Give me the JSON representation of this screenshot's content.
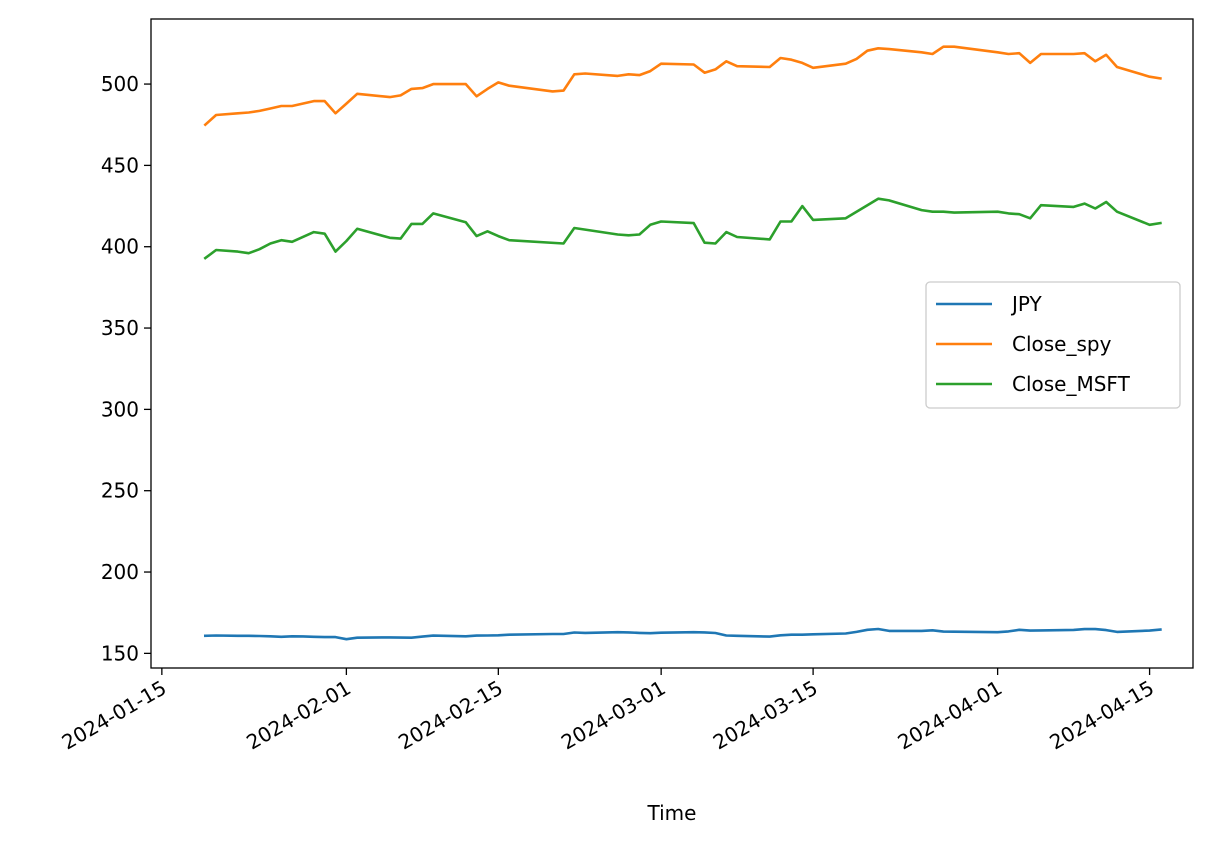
{
  "chart_data": {
    "type": "line",
    "title": "",
    "xlabel": "Time",
    "ylabel": "",
    "xlim": [
      "2024-01-14",
      "2024-04-19"
    ],
    "ylim": [
      141,
      540
    ],
    "grid": false,
    "legend_position": "center-right",
    "x_ticks": [
      "2024-01-15",
      "2024-02-01",
      "2024-02-15",
      "2024-03-01",
      "2024-03-15",
      "2024-04-01",
      "2024-04-15"
    ],
    "y_ticks": [
      150,
      200,
      250,
      300,
      350,
      400,
      450,
      500
    ],
    "series": [
      {
        "name": "JPY",
        "color": "#1f77b4",
        "points": [
          [
            "2024-01-19",
            160.8
          ],
          [
            "2024-01-20",
            161.0
          ],
          [
            "2024-01-22",
            160.8
          ],
          [
            "2024-01-23",
            160.8
          ],
          [
            "2024-01-24",
            160.7
          ],
          [
            "2024-01-25",
            160.5
          ],
          [
            "2024-01-26",
            160.2
          ],
          [
            "2024-01-27",
            160.5
          ],
          [
            "2024-01-28",
            160.4
          ],
          [
            "2024-01-29",
            160.2
          ],
          [
            "2024-01-30",
            160.0
          ],
          [
            "2024-01-31",
            160.0
          ],
          [
            "2024-02-01",
            158.7
          ],
          [
            "2024-02-02",
            159.6
          ],
          [
            "2024-02-05",
            159.8
          ],
          [
            "2024-02-06",
            159.7
          ],
          [
            "2024-02-07",
            159.6
          ],
          [
            "2024-02-08",
            160.3
          ],
          [
            "2024-02-09",
            160.9
          ],
          [
            "2024-02-12",
            160.5
          ],
          [
            "2024-02-13",
            160.9
          ],
          [
            "2024-02-14",
            161.0
          ],
          [
            "2024-02-15",
            161.1
          ],
          [
            "2024-02-16",
            161.5
          ],
          [
            "2024-02-20",
            161.9
          ],
          [
            "2024-02-21",
            161.9
          ],
          [
            "2024-02-22",
            162.8
          ],
          [
            "2024-02-23",
            162.6
          ],
          [
            "2024-02-26",
            163.0
          ],
          [
            "2024-02-27",
            162.9
          ],
          [
            "2024-02-28",
            162.6
          ],
          [
            "2024-02-29",
            162.4
          ],
          [
            "2024-03-01",
            162.7
          ],
          [
            "2024-03-04",
            163.0
          ],
          [
            "2024-03-05",
            162.9
          ],
          [
            "2024-03-06",
            162.5
          ],
          [
            "2024-03-07",
            161.0
          ],
          [
            "2024-03-08",
            160.8
          ],
          [
            "2024-03-11",
            160.3
          ],
          [
            "2024-03-12",
            161.1
          ],
          [
            "2024-03-13",
            161.5
          ],
          [
            "2024-03-14",
            161.5
          ],
          [
            "2024-03-15",
            161.7
          ],
          [
            "2024-03-18",
            162.2
          ],
          [
            "2024-03-19",
            163.2
          ],
          [
            "2024-03-20",
            164.5
          ],
          [
            "2024-03-21",
            165.0
          ],
          [
            "2024-03-22",
            163.8
          ],
          [
            "2024-03-25",
            163.8
          ],
          [
            "2024-03-26",
            164.2
          ],
          [
            "2024-03-27",
            163.4
          ],
          [
            "2024-03-28",
            163.3
          ],
          [
            "2024-04-01",
            163.0
          ],
          [
            "2024-04-02",
            163.5
          ],
          [
            "2024-04-03",
            164.5
          ],
          [
            "2024-04-04",
            164.0
          ],
          [
            "2024-04-05",
            164.1
          ],
          [
            "2024-04-08",
            164.4
          ],
          [
            "2024-04-09",
            164.9
          ],
          [
            "2024-04-10",
            164.9
          ],
          [
            "2024-04-11",
            164.3
          ],
          [
            "2024-04-12",
            163.2
          ],
          [
            "2024-04-15",
            164.0
          ],
          [
            "2024-04-16",
            164.6
          ]
        ]
      },
      {
        "name": "Close_spy",
        "color": "#ff7f0e",
        "points": [
          [
            "2024-01-19",
            475.0
          ],
          [
            "2024-01-20",
            481.0
          ],
          [
            "2024-01-22",
            482.0
          ],
          [
            "2024-01-23",
            482.5
          ],
          [
            "2024-01-24",
            483.5
          ],
          [
            "2024-01-25",
            485.0
          ],
          [
            "2024-01-26",
            486.5
          ],
          [
            "2024-01-27",
            486.5
          ],
          [
            "2024-01-29",
            489.5
          ],
          [
            "2024-01-30",
            489.5
          ],
          [
            "2024-01-31",
            482.0
          ],
          [
            "2024-02-01",
            488.0
          ],
          [
            "2024-02-02",
            494.0
          ],
          [
            "2024-02-05",
            492.0
          ],
          [
            "2024-02-06",
            493.0
          ],
          [
            "2024-02-07",
            497.0
          ],
          [
            "2024-02-08",
            497.5
          ],
          [
            "2024-02-09",
            500.0
          ],
          [
            "2024-02-12",
            500.0
          ],
          [
            "2024-02-13",
            492.5
          ],
          [
            "2024-02-14",
            497.0
          ],
          [
            "2024-02-15",
            501.0
          ],
          [
            "2024-02-16",
            499.0
          ],
          [
            "2024-02-20",
            495.5
          ],
          [
            "2024-02-21",
            496.0
          ],
          [
            "2024-02-22",
            506.0
          ],
          [
            "2024-02-23",
            506.5
          ],
          [
            "2024-02-26",
            505.0
          ],
          [
            "2024-02-27",
            506.0
          ],
          [
            "2024-02-28",
            505.5
          ],
          [
            "2024-02-29",
            508.0
          ],
          [
            "2024-03-01",
            512.5
          ],
          [
            "2024-03-04",
            512.0
          ],
          [
            "2024-03-05",
            507.0
          ],
          [
            "2024-03-06",
            509.0
          ],
          [
            "2024-03-07",
            514.0
          ],
          [
            "2024-03-08",
            511.0
          ],
          [
            "2024-03-11",
            510.5
          ],
          [
            "2024-03-12",
            516.0
          ],
          [
            "2024-03-13",
            515.0
          ],
          [
            "2024-03-14",
            513.0
          ],
          [
            "2024-03-15",
            510.0
          ],
          [
            "2024-03-18",
            512.5
          ],
          [
            "2024-03-19",
            515.5
          ],
          [
            "2024-03-20",
            520.5
          ],
          [
            "2024-03-21",
            522.0
          ],
          [
            "2024-03-22",
            521.5
          ],
          [
            "2024-03-25",
            519.5
          ],
          [
            "2024-03-26",
            518.5
          ],
          [
            "2024-03-27",
            523.0
          ],
          [
            "2024-03-28",
            523.0
          ],
          [
            "2024-04-01",
            519.5
          ],
          [
            "2024-04-02",
            518.5
          ],
          [
            "2024-04-03",
            519.0
          ],
          [
            "2024-04-04",
            513.0
          ],
          [
            "2024-04-05",
            518.5
          ],
          [
            "2024-04-08",
            518.5
          ],
          [
            "2024-04-09",
            519.0
          ],
          [
            "2024-04-10",
            514.0
          ],
          [
            "2024-04-11",
            518.0
          ],
          [
            "2024-04-12",
            510.5
          ],
          [
            "2024-04-15",
            504.5
          ],
          [
            "2024-04-16",
            503.5
          ]
        ]
      },
      {
        "name": "Close_MSFT",
        "color": "#2ca02c",
        "points": [
          [
            "2024-01-19",
            393.0
          ],
          [
            "2024-01-20",
            398.0
          ],
          [
            "2024-01-22",
            397.0
          ],
          [
            "2024-01-23",
            396.0
          ],
          [
            "2024-01-24",
            398.5
          ],
          [
            "2024-01-25",
            402.0
          ],
          [
            "2024-01-26",
            404.0
          ],
          [
            "2024-01-27",
            403.0
          ],
          [
            "2024-01-29",
            409.0
          ],
          [
            "2024-01-30",
            408.0
          ],
          [
            "2024-01-31",
            397.0
          ],
          [
            "2024-02-01",
            403.5
          ],
          [
            "2024-02-02",
            411.0
          ],
          [
            "2024-02-05",
            405.5
          ],
          [
            "2024-02-06",
            405.0
          ],
          [
            "2024-02-07",
            414.0
          ],
          [
            "2024-02-08",
            414.0
          ],
          [
            "2024-02-09",
            420.5
          ],
          [
            "2024-02-12",
            415.0
          ],
          [
            "2024-02-13",
            406.5
          ],
          [
            "2024-02-14",
            409.5
          ],
          [
            "2024-02-15",
            406.5
          ],
          [
            "2024-02-16",
            404.0
          ],
          [
            "2024-02-21",
            402.0
          ],
          [
            "2024-02-22",
            411.5
          ],
          [
            "2024-02-23",
            410.5
          ],
          [
            "2024-02-26",
            407.5
          ],
          [
            "2024-02-27",
            407.0
          ],
          [
            "2024-02-28",
            407.5
          ],
          [
            "2024-02-29",
            413.5
          ],
          [
            "2024-03-01",
            415.5
          ],
          [
            "2024-03-04",
            414.5
          ],
          [
            "2024-03-05",
            402.5
          ],
          [
            "2024-03-06",
            402.0
          ],
          [
            "2024-03-07",
            409.0
          ],
          [
            "2024-03-08",
            406.0
          ],
          [
            "2024-03-11",
            404.5
          ],
          [
            "2024-03-12",
            415.5
          ],
          [
            "2024-03-13",
            415.5
          ],
          [
            "2024-03-14",
            425.0
          ],
          [
            "2024-03-15",
            416.5
          ],
          [
            "2024-03-18",
            417.5
          ],
          [
            "2024-03-20",
            425.5
          ],
          [
            "2024-03-21",
            429.5
          ],
          [
            "2024-03-22",
            428.5
          ],
          [
            "2024-03-25",
            422.5
          ],
          [
            "2024-03-26",
            421.5
          ],
          [
            "2024-03-27",
            421.5
          ],
          [
            "2024-03-28",
            421.0
          ],
          [
            "2024-04-01",
            421.5
          ],
          [
            "2024-04-02",
            420.5
          ],
          [
            "2024-04-03",
            420.0
          ],
          [
            "2024-04-04",
            417.5
          ],
          [
            "2024-04-05",
            425.5
          ],
          [
            "2024-04-08",
            424.5
          ],
          [
            "2024-04-09",
            426.5
          ],
          [
            "2024-04-10",
            423.5
          ],
          [
            "2024-04-11",
            427.5
          ],
          [
            "2024-04-12",
            421.5
          ],
          [
            "2024-04-15",
            413.5
          ],
          [
            "2024-04-16",
            414.5
          ]
        ]
      }
    ]
  }
}
